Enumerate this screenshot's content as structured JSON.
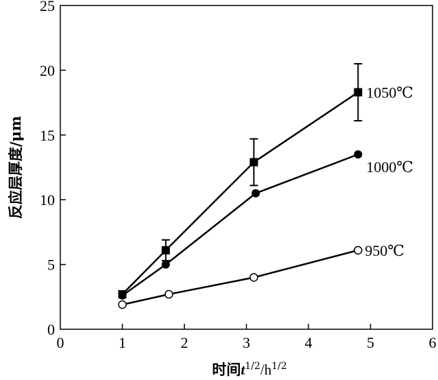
{
  "chart_data": {
    "type": "line",
    "xlabel": "时间t^1/2/h^1/2",
    "xlabel_parts": {
      "prefix": "时间",
      "t": "t",
      "t_exp": "1/2",
      "sep": "/h",
      "h_exp": "1/2"
    },
    "ylabel": "反应层厚度/μm",
    "xlim": [
      0,
      6
    ],
    "ylim": [
      0,
      25
    ],
    "xticks": [
      0,
      1,
      2,
      3,
      4,
      5,
      6
    ],
    "yticks": [
      0,
      5,
      10,
      15,
      20,
      25
    ],
    "x_tick_labels": [
      "0",
      "1",
      "2",
      "3",
      "4",
      "5",
      "6"
    ],
    "y_tick_labels": [
      "0",
      "5",
      "10",
      "15",
      "20",
      "25"
    ],
    "grid": false,
    "series": [
      {
        "name": "1050℃",
        "marker": "filled-square",
        "x": [
          1.0,
          1.7,
          3.12,
          4.8
        ],
        "y": [
          2.7,
          6.1,
          12.9,
          18.3
        ],
        "error": [
          0,
          0.8,
          1.8,
          2.2
        ]
      },
      {
        "name": "1000℃",
        "marker": "filled-circle",
        "x": [
          1.0,
          1.7,
          3.15,
          4.8
        ],
        "y": [
          2.6,
          5.0,
          10.5,
          13.5
        ],
        "error": [
          0,
          0,
          0,
          0
        ]
      },
      {
        "name": "950℃",
        "marker": "open-circle",
        "x": [
          1.0,
          1.75,
          3.12,
          4.8
        ],
        "y": [
          1.9,
          2.7,
          4.0,
          6.1
        ],
        "error": [
          0,
          0,
          0,
          0
        ]
      }
    ]
  }
}
